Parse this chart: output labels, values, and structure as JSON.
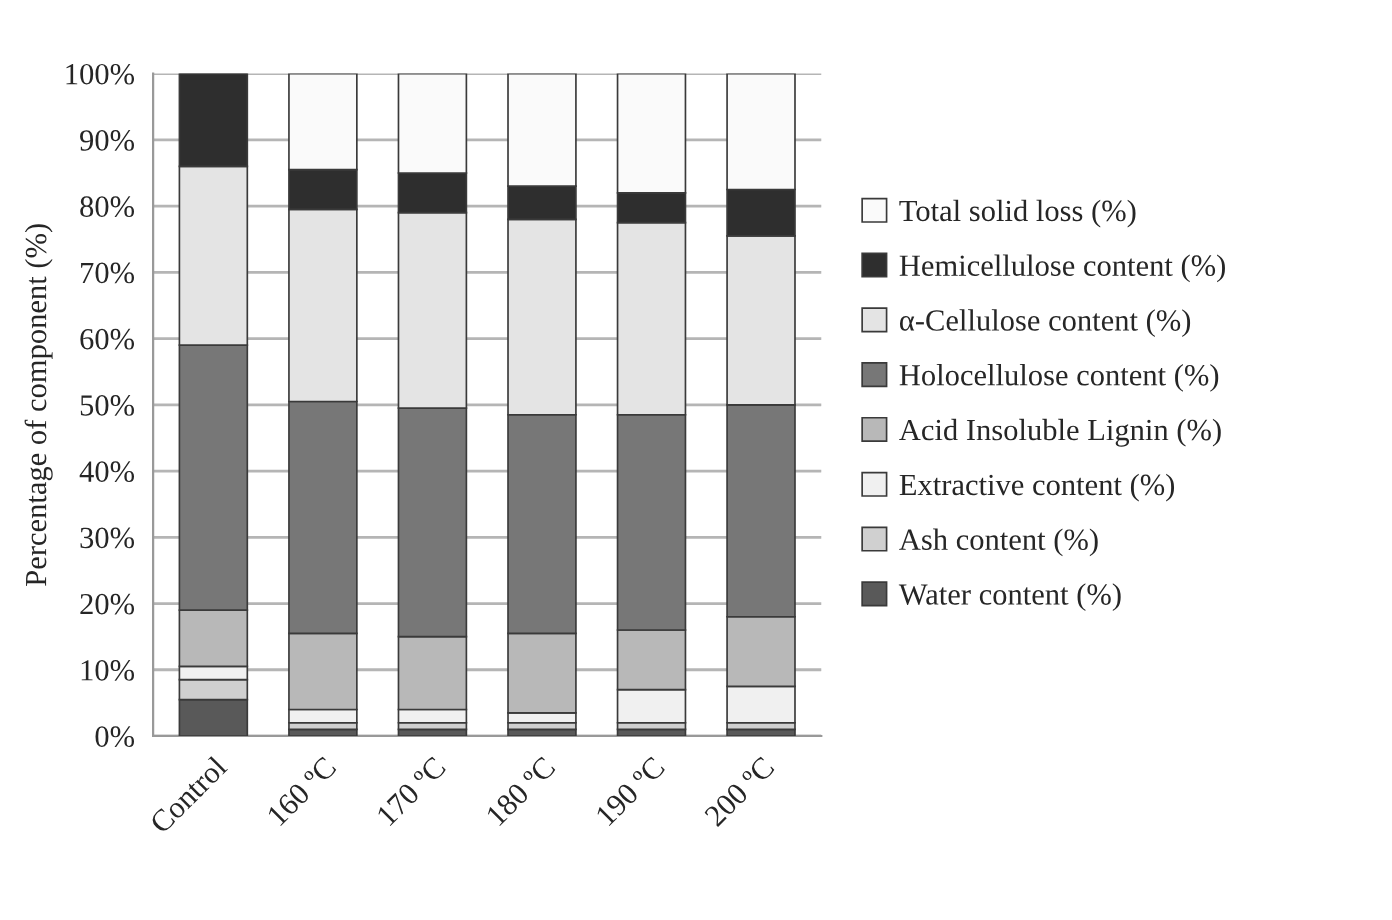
{
  "chart_data": {
    "type": "bar",
    "stacked": true,
    "categories": [
      "Control",
      "160 ºC",
      "170 ºC",
      "180 ºC",
      "190 ºC",
      "200 ºC"
    ],
    "ylabel": "Percentage of component (%)",
    "ylim": [
      0,
      100
    ],
    "yticks": [
      {
        "value": 0,
        "label": "0%"
      },
      {
        "value": 10,
        "label": "10%"
      },
      {
        "value": 20,
        "label": "20%"
      },
      {
        "value": 30,
        "label": "30%"
      },
      {
        "value": 40,
        "label": "40%"
      },
      {
        "value": 50,
        "label": "50%"
      },
      {
        "value": 60,
        "label": "60%"
      },
      {
        "value": 70,
        "label": "70%"
      },
      {
        "value": 80,
        "label": "80%"
      },
      {
        "value": 90,
        "label": "90%"
      },
      {
        "value": 100,
        "label": "100%"
      }
    ],
    "grid": "y",
    "legend": "right",
    "series": [
      {
        "name": "Water content (%)",
        "color": "#595959",
        "values": [
          5.5,
          1,
          1,
          1,
          1,
          1
        ]
      },
      {
        "name": "Ash content (%)",
        "color": "#d0d0d0",
        "values": [
          3,
          1,
          1,
          1,
          1,
          1
        ]
      },
      {
        "name": "Extractive content (%)",
        "color": "#f0f0f0",
        "values": [
          2,
          2,
          2,
          1.5,
          5,
          5.5
        ]
      },
      {
        "name": "Acid Insoluble Lignin (%)",
        "color": "#b8b8b8",
        "values": [
          8.5,
          11.5,
          11,
          12,
          9,
          10.5
        ]
      },
      {
        "name": "Holocellulose content (%)",
        "color": "#777777",
        "values": [
          40,
          35,
          34.5,
          33,
          32.5,
          32
        ]
      },
      {
        "name": "α-Cellulose content (%)",
        "color": "#e4e4e4",
        "values": [
          27,
          29,
          29.5,
          29.5,
          29,
          25.5
        ]
      },
      {
        "name": "Hemicellulose content (%)",
        "color": "#2e2e2e",
        "values": [
          14,
          6,
          6,
          5,
          4.5,
          7
        ]
      },
      {
        "name": "Total solid loss (%)",
        "color": "#fafafa",
        "values": [
          null,
          14.5,
          15,
          17,
          18,
          17.5
        ]
      }
    ]
  }
}
